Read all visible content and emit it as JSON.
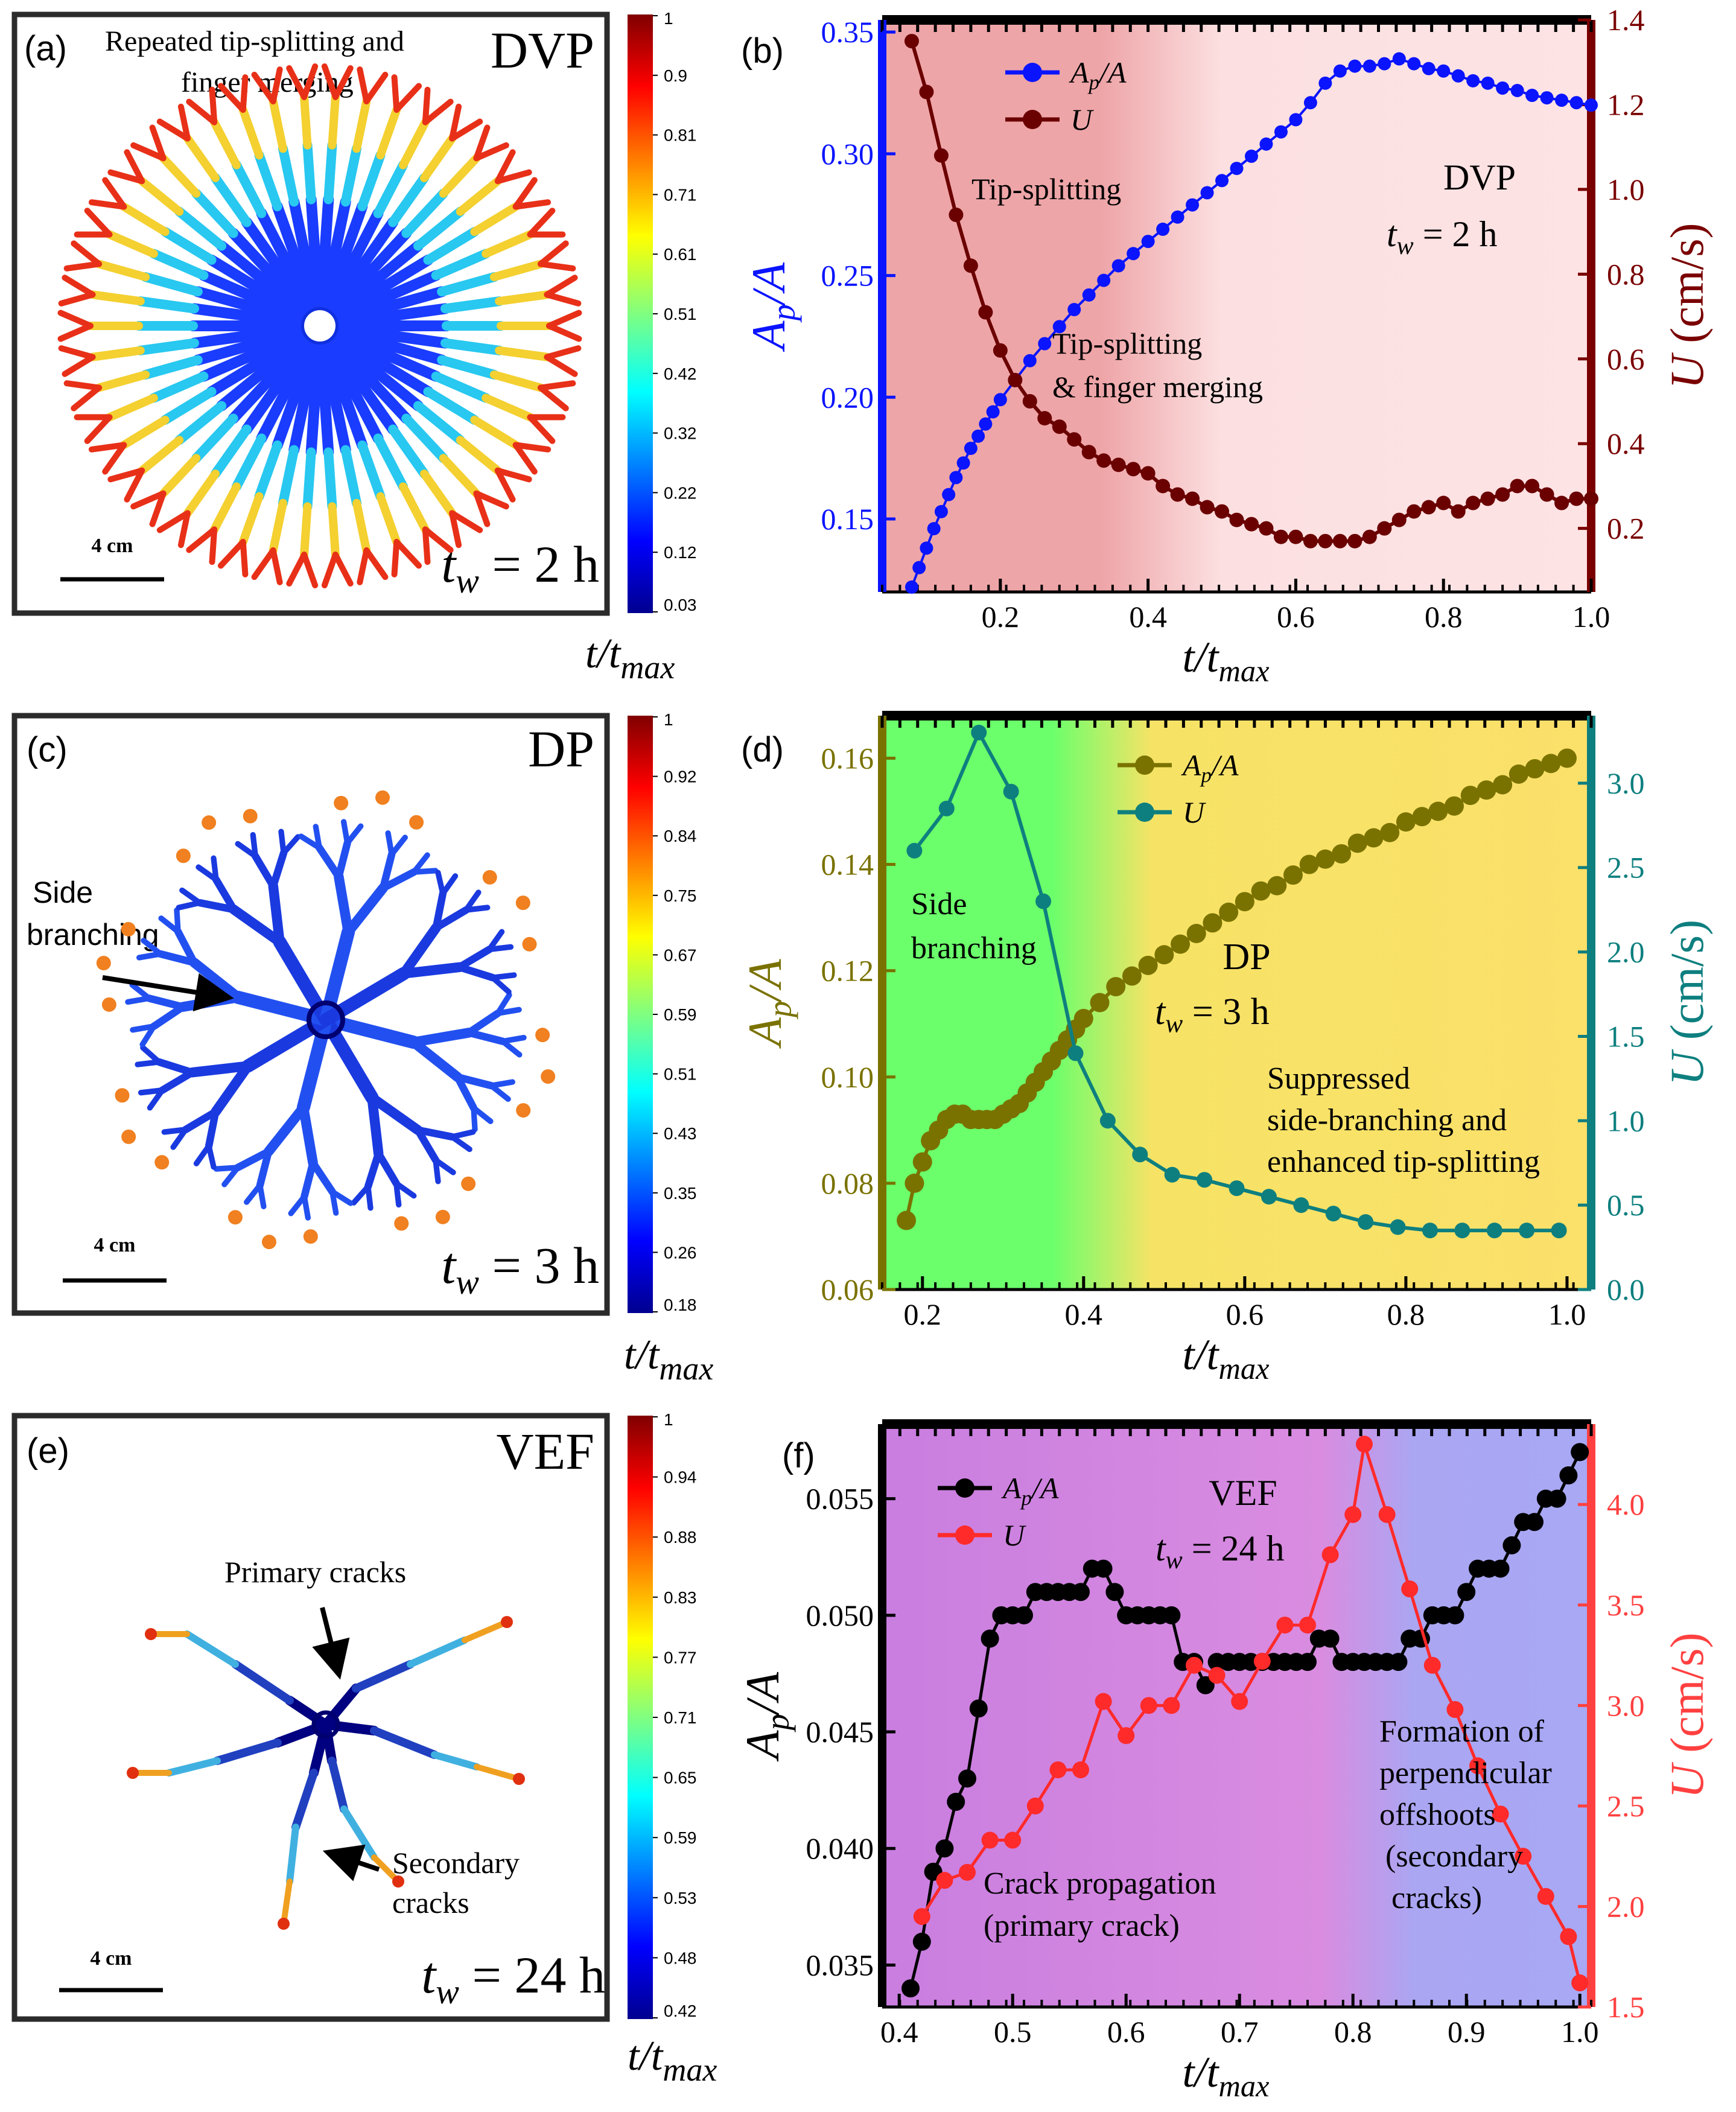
{
  "panels": {
    "a": {
      "label": "(a)",
      "annotation_line1": "Repeated tip-splitting and",
      "annotation_line2": "finger merging",
      "regime": "DVP",
      "scale_bar": "4 cm",
      "tw_sym": "t",
      "tw_sub": "w",
      "tw_val": " = 2 h",
      "colorbar_ticks": [
        "1",
        "0.9",
        "0.81",
        "0.71",
        "0.61",
        "0.51",
        "0.42",
        "0.32",
        "0.22",
        "0.12",
        "0.03"
      ],
      "colorbar_label_t": "t/t",
      "colorbar_label_sub": "max"
    },
    "c": {
      "label": "(c)",
      "annotation_line1": "Side",
      "annotation_line2": "branching",
      "regime": "DP",
      "scale_bar": "4 cm",
      "tw_sym": "t",
      "tw_sub": "w",
      "tw_val": " = 3 h",
      "colorbar_ticks": [
        "1",
        "0.92",
        "0.84",
        "0.75",
        "0.67",
        "0.59",
        "0.51",
        "0.43",
        "0.35",
        "0.26",
        "0.18"
      ],
      "colorbar_label_t": "t/t",
      "colorbar_label_sub": "max"
    },
    "e": {
      "label": "(e)",
      "annotation_primary": "Primary cracks",
      "annotation_secondary_line1": "Secondary",
      "annotation_secondary_line2": "cracks",
      "regime": "VEF",
      "scale_bar": "4 cm",
      "tw_sym": "t",
      "tw_sub": "w",
      "tw_val": " = 24 h",
      "colorbar_ticks": [
        "1",
        "0.94",
        "0.88",
        "0.83",
        "0.77",
        "0.71",
        "0.65",
        "0.59",
        "0.53",
        "0.48",
        "0.42"
      ],
      "colorbar_label_t": "t/t",
      "colorbar_label_sub": "max"
    }
  },
  "chart_data": [
    {
      "id": "b",
      "label": "(b)",
      "type": "line",
      "xlabel": "t/t",
      "xlabel_sub": "max",
      "ylabel_left": "A",
      "ylabel_left_sub": "p",
      "ylabel_left_tail": "/A",
      "ylabel_right": "U (cm/s)",
      "xlim": [
        0.04,
        1.0
      ],
      "ylim_left": [
        0.12,
        0.355
      ],
      "ylim_right": [
        0.05,
        1.4
      ],
      "xticks": [
        "0.2",
        "0.4",
        "0.6",
        "0.8",
        "1.0"
      ],
      "yticks_left": [
        "0.15",
        "0.20",
        "0.25",
        "0.30",
        "0.35"
      ],
      "yticks_right": [
        "0.2",
        "0.4",
        "0.6",
        "0.8",
        "1.0",
        "1.2",
        "1.4"
      ],
      "legend": [
        {
          "name": "A",
          "sub": "p",
          "tail": "/A",
          "color": "#0a14ff"
        },
        {
          "name": "U",
          "sub": "",
          "tail": "",
          "color": "#6b0000"
        }
      ],
      "annotations": [
        "Tip-splitting",
        "Tip-splitting",
        "& finger merging",
        "DVP",
        "t",
        "w",
        " = 2 h"
      ],
      "series": [
        {
          "name": "Ap/A",
          "color": "#0a14ff",
          "axis": "left",
          "x": [
            0.08,
            0.09,
            0.1,
            0.11,
            0.12,
            0.13,
            0.14,
            0.15,
            0.16,
            0.17,
            0.18,
            0.19,
            0.2,
            0.22,
            0.24,
            0.26,
            0.28,
            0.3,
            0.32,
            0.34,
            0.36,
            0.38,
            0.4,
            0.42,
            0.44,
            0.46,
            0.48,
            0.5,
            0.52,
            0.54,
            0.56,
            0.58,
            0.6,
            0.62,
            0.64,
            0.66,
            0.68,
            0.7,
            0.72,
            0.74,
            0.76,
            0.78,
            0.8,
            0.82,
            0.84,
            0.86,
            0.88,
            0.9,
            0.92,
            0.94,
            0.96,
            0.98,
            1.0
          ],
          "values": [
            0.122,
            0.13,
            0.138,
            0.146,
            0.153,
            0.16,
            0.167,
            0.173,
            0.179,
            0.184,
            0.189,
            0.194,
            0.199,
            0.207,
            0.215,
            0.222,
            0.229,
            0.236,
            0.242,
            0.248,
            0.254,
            0.259,
            0.264,
            0.269,
            0.274,
            0.279,
            0.284,
            0.289,
            0.294,
            0.299,
            0.304,
            0.309,
            0.314,
            0.321,
            0.329,
            0.334,
            0.336,
            0.336,
            0.337,
            0.339,
            0.337,
            0.335,
            0.334,
            0.332,
            0.33,
            0.329,
            0.327,
            0.326,
            0.324,
            0.323,
            0.322,
            0.321,
            0.32
          ]
        },
        {
          "name": "U",
          "color": "#6b0000",
          "axis": "right",
          "x": [
            0.08,
            0.1,
            0.12,
            0.14,
            0.16,
            0.18,
            0.2,
            0.22,
            0.24,
            0.26,
            0.28,
            0.3,
            0.32,
            0.34,
            0.36,
            0.38,
            0.4,
            0.42,
            0.44,
            0.46,
            0.48,
            0.5,
            0.52,
            0.54,
            0.56,
            0.58,
            0.6,
            0.62,
            0.64,
            0.66,
            0.68,
            0.7,
            0.72,
            0.74,
            0.76,
            0.78,
            0.8,
            0.82,
            0.84,
            0.86,
            0.88,
            0.9,
            0.92,
            0.94,
            0.96,
            0.98,
            1.0
          ],
          "values": [
            1.35,
            1.23,
            1.08,
            0.94,
            0.82,
            0.71,
            0.62,
            0.55,
            0.5,
            0.46,
            0.44,
            0.41,
            0.38,
            0.36,
            0.35,
            0.34,
            0.33,
            0.3,
            0.28,
            0.27,
            0.25,
            0.24,
            0.22,
            0.21,
            0.2,
            0.18,
            0.18,
            0.17,
            0.17,
            0.17,
            0.17,
            0.18,
            0.2,
            0.22,
            0.24,
            0.25,
            0.26,
            0.24,
            0.26,
            0.27,
            0.28,
            0.3,
            0.3,
            0.28,
            0.26,
            0.27,
            0.27
          ]
        }
      ]
    },
    {
      "id": "d",
      "label": "(d)",
      "type": "line",
      "xlabel": "t/t",
      "xlabel_sub": "max",
      "ylabel_left": "A",
      "ylabel_left_sub": "p",
      "ylabel_left_tail": "/A",
      "ylabel_right": "U (cm/s)",
      "xlim": [
        0.15,
        1.03
      ],
      "ylim_left": [
        0.06,
        0.168
      ],
      "ylim_right": [
        0.0,
        3.4
      ],
      "xticks": [
        "0.2",
        "0.4",
        "0.6",
        "0.8",
        "1.0"
      ],
      "yticks_left": [
        "0.06",
        "0.08",
        "0.10",
        "0.12",
        "0.14",
        "0.16"
      ],
      "yticks_right": [
        "0.0",
        "0.5",
        "1.0",
        "1.5",
        "2.0",
        "2.5",
        "3.0"
      ],
      "legend": [
        {
          "name": "A",
          "sub": "p",
          "tail": "/A",
          "color": "#7a7200"
        },
        {
          "name": "U",
          "sub": "",
          "tail": "",
          "color": "#0e7f7f"
        }
      ],
      "annotations": [
        "Side",
        "branching",
        "DP",
        "t",
        "w",
        " = 3 h",
        "Suppressed",
        "side-branching and",
        "enhanced tip-splitting"
      ],
      "series": [
        {
          "name": "Ap/A",
          "color": "#7a7200",
          "axis": "left",
          "x": [
            0.18,
            0.19,
            0.2,
            0.21,
            0.22,
            0.23,
            0.24,
            0.25,
            0.26,
            0.27,
            0.28,
            0.29,
            0.3,
            0.31,
            0.32,
            0.33,
            0.34,
            0.35,
            0.36,
            0.37,
            0.38,
            0.39,
            0.4,
            0.42,
            0.44,
            0.46,
            0.48,
            0.5,
            0.52,
            0.54,
            0.56,
            0.58,
            0.6,
            0.62,
            0.64,
            0.66,
            0.68,
            0.7,
            0.72,
            0.74,
            0.76,
            0.78,
            0.8,
            0.82,
            0.84,
            0.86,
            0.88,
            0.9,
            0.92,
            0.94,
            0.96,
            0.98,
            1.0
          ],
          "values": [
            0.073,
            0.08,
            0.084,
            0.088,
            0.09,
            0.092,
            0.093,
            0.093,
            0.092,
            0.092,
            0.092,
            0.092,
            0.093,
            0.094,
            0.095,
            0.097,
            0.099,
            0.101,
            0.103,
            0.105,
            0.107,
            0.109,
            0.111,
            0.114,
            0.117,
            0.119,
            0.121,
            0.123,
            0.125,
            0.127,
            0.129,
            0.131,
            0.133,
            0.135,
            0.136,
            0.138,
            0.14,
            0.141,
            0.142,
            0.144,
            0.145,
            0.146,
            0.148,
            0.149,
            0.15,
            0.151,
            0.153,
            0.154,
            0.155,
            0.157,
            0.158,
            0.159,
            0.16
          ]
        },
        {
          "name": "U",
          "color": "#0e7f7f",
          "axis": "right",
          "x": [
            0.19,
            0.23,
            0.27,
            0.31,
            0.35,
            0.39,
            0.43,
            0.47,
            0.51,
            0.55,
            0.59,
            0.63,
            0.67,
            0.71,
            0.75,
            0.79,
            0.83,
            0.87,
            0.91,
            0.95,
            0.99
          ],
          "values": [
            2.6,
            2.85,
            3.3,
            2.95,
            2.3,
            1.4,
            1.0,
            0.8,
            0.68,
            0.65,
            0.6,
            0.55,
            0.5,
            0.45,
            0.4,
            0.37,
            0.35,
            0.35,
            0.35,
            0.35,
            0.35
          ]
        }
      ]
    },
    {
      "id": "f",
      "label": "(f)",
      "type": "line",
      "xlabel": "t/t",
      "xlabel_sub": "max",
      "ylabel_left": "A",
      "ylabel_left_sub": "p",
      "ylabel_left_tail": "/A",
      "ylabel_right": "U (cm/s)",
      "xlim": [
        0.385,
        1.01
      ],
      "ylim_left": [
        0.0332,
        0.0582
      ],
      "ylim_right": [
        1.5,
        4.4
      ],
      "xticks": [
        "0.4",
        "0.5",
        "0.6",
        "0.7",
        "0.8",
        "0.9",
        "1.0"
      ],
      "yticks_left": [
        "0.035",
        "0.040",
        "0.045",
        "0.050",
        "0.055"
      ],
      "yticks_right": [
        "1.5",
        "2.0",
        "2.5",
        "3.0",
        "3.5",
        "4.0"
      ],
      "legend": [
        {
          "name": "A",
          "sub": "p",
          "tail": "/A",
          "color": "#000000"
        },
        {
          "name": "U",
          "sub": "",
          "tail": "",
          "color": "#ff2a2a"
        }
      ],
      "annotations": [
        "VEF",
        "t",
        "w",
        " = 24 h",
        "Crack propagation",
        "(primary crack)",
        "Formation of",
        "perpendicular",
        "offshoots",
        "(secondary",
        "cracks)"
      ],
      "series": [
        {
          "name": "Ap/A",
          "color": "#000000",
          "axis": "left",
          "x": [
            0.41,
            0.42,
            0.43,
            0.44,
            0.45,
            0.46,
            0.47,
            0.48,
            0.49,
            0.5,
            0.51,
            0.52,
            0.53,
            0.54,
            0.55,
            0.56,
            0.57,
            0.58,
            0.59,
            0.6,
            0.61,
            0.62,
            0.63,
            0.64,
            0.65,
            0.66,
            0.67,
            0.68,
            0.69,
            0.7,
            0.71,
            0.72,
            0.73,
            0.74,
            0.75,
            0.76,
            0.77,
            0.78,
            0.79,
            0.8,
            0.81,
            0.82,
            0.83,
            0.84,
            0.85,
            0.86,
            0.87,
            0.88,
            0.89,
            0.9,
            0.91,
            0.92,
            0.93,
            0.94,
            0.95,
            0.96,
            0.97,
            0.98,
            0.99,
            1.0
          ],
          "values": [
            0.034,
            0.036,
            0.039,
            0.04,
            0.042,
            0.043,
            0.046,
            0.049,
            0.05,
            0.05,
            0.05,
            0.051,
            0.051,
            0.051,
            0.051,
            0.051,
            0.052,
            0.052,
            0.051,
            0.05,
            0.05,
            0.05,
            0.05,
            0.05,
            0.048,
            0.048,
            0.047,
            0.048,
            0.048,
            0.048,
            0.048,
            0.048,
            0.048,
            0.048,
            0.048,
            0.048,
            0.049,
            0.049,
            0.048,
            0.048,
            0.048,
            0.048,
            0.048,
            0.048,
            0.049,
            0.049,
            0.05,
            0.05,
            0.05,
            0.051,
            0.052,
            0.052,
            0.052,
            0.053,
            0.054,
            0.054,
            0.055,
            0.055,
            0.056,
            0.057
          ]
        },
        {
          "name": "U",
          "color": "#ff2a2a",
          "axis": "right",
          "x": [
            0.42,
            0.44,
            0.46,
            0.48,
            0.5,
            0.52,
            0.54,
            0.56,
            0.58,
            0.6,
            0.62,
            0.64,
            0.66,
            0.68,
            0.7,
            0.72,
            0.74,
            0.76,
            0.78,
            0.8,
            0.81,
            0.83,
            0.85,
            0.87,
            0.89,
            0.91,
            0.93,
            0.95,
            0.97,
            0.99,
            1.0
          ],
          "values": [
            1.95,
            2.13,
            2.17,
            2.33,
            2.33,
            2.5,
            2.68,
            2.68,
            3.02,
            2.85,
            3.0,
            3.0,
            3.2,
            3.15,
            3.02,
            3.22,
            3.4,
            3.4,
            3.75,
            3.95,
            4.3,
            3.95,
            3.58,
            3.2,
            2.98,
            2.7,
            2.46,
            2.25,
            2.05,
            1.85,
            1.62
          ]
        }
      ]
    }
  ]
}
